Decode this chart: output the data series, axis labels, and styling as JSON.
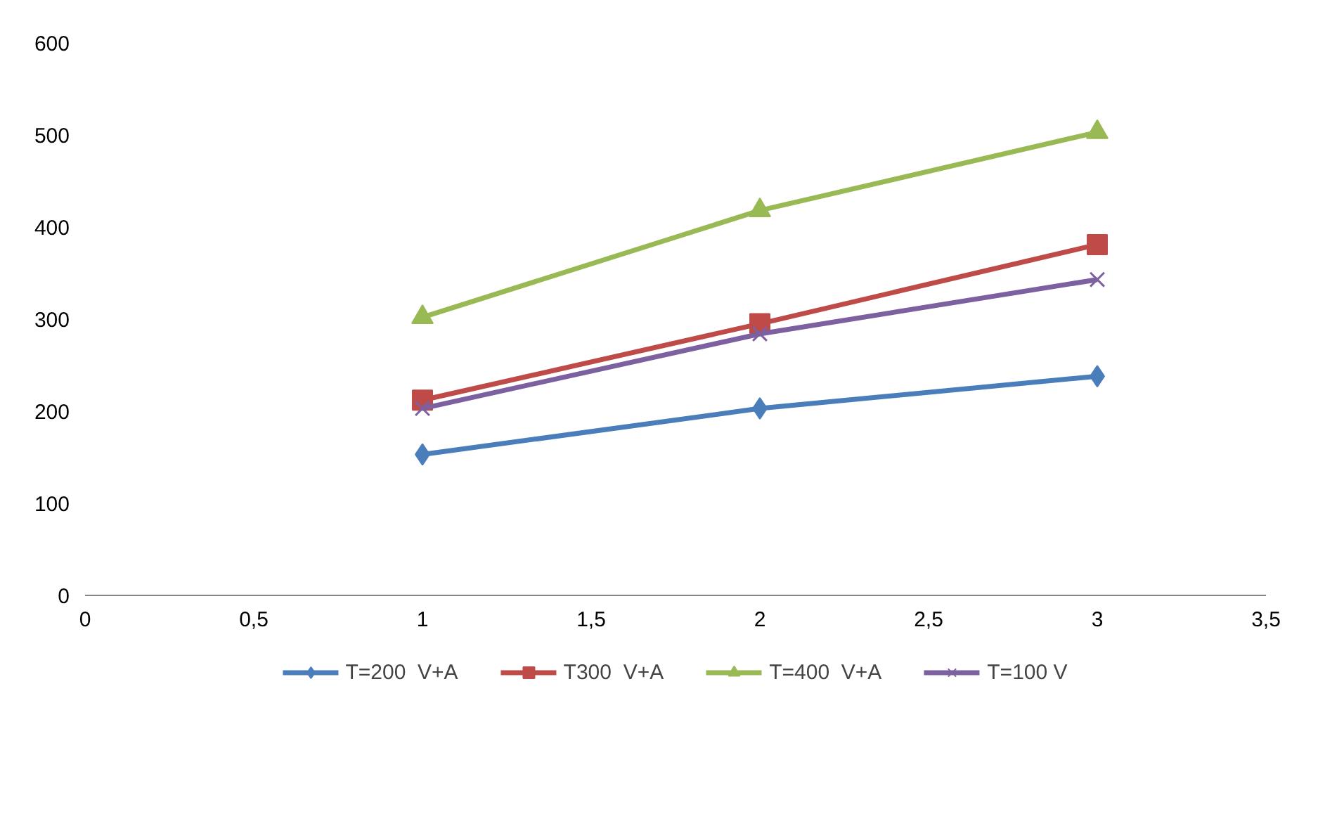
{
  "chart_data": {
    "type": "line",
    "x": [
      1,
      2,
      3
    ],
    "series": [
      {
        "name": "T=200  V+A",
        "color": "#4a7ebb",
        "marker": "diamond",
        "values": [
          153,
          203,
          238
        ]
      },
      {
        "name": "T300  V+A",
        "color": "#be4b48",
        "marker": "square",
        "values": [
          212,
          295,
          381
        ]
      },
      {
        "name": "T=400  V+A",
        "color": "#98b954",
        "marker": "triangle",
        "values": [
          302,
          418,
          503
        ]
      },
      {
        "name": "T=100 V",
        "color": "#7d60a0",
        "marker": "cross",
        "values": [
          203,
          284,
          343
        ]
      }
    ],
    "xlim": [
      0,
      3.5
    ],
    "xticks": [
      0,
      {
        "value": 0.5,
        "label": "0,5"
      },
      1,
      {
        "value": 1.5,
        "label": "1,5"
      },
      2,
      {
        "value": 2.5,
        "label": "2,5"
      },
      3,
      {
        "value": 3.5,
        "label": "3,5"
      }
    ],
    "ylim": [
      0,
      600
    ],
    "yticks": [
      0,
      100,
      200,
      300,
      400,
      500,
      600
    ],
    "grid": false,
    "legend": "bottom",
    "line_style": "solid"
  }
}
